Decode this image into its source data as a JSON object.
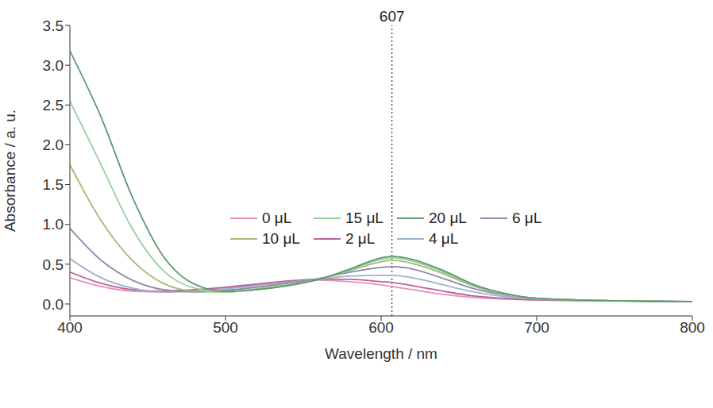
{
  "chart_data": {
    "type": "line",
    "x_label": "Wavelength / nm",
    "y_label": "Absorbance / a. u.",
    "x": [
      400,
      420,
      440,
      460,
      480,
      500,
      520,
      540,
      560,
      580,
      600,
      607,
      620,
      640,
      660,
      680,
      700,
      750,
      800
    ],
    "xlim": [
      400,
      800
    ],
    "xticks": [
      400,
      500,
      600,
      700,
      800
    ],
    "ylim": [
      -0.15,
      3.5
    ],
    "yticks": [
      {
        "value": 0,
        "label": "0.0"
      },
      0.5,
      {
        "value": 1,
        "label": "1.0"
      },
      1.5,
      {
        "value": 2,
        "label": "2.0"
      },
      2.5,
      {
        "value": 3,
        "label": "3.0"
      },
      3.5
    ],
    "grid": false,
    "legend": "center",
    "annotations": [
      {
        "x": 607,
        "text": "607",
        "line_style": "dotted"
      }
    ],
    "series": [
      {
        "name": "0 μL",
        "color": "#e88fb4",
        "values": [
          0.33,
          0.22,
          0.16,
          0.15,
          0.17,
          0.2,
          0.24,
          0.28,
          0.3,
          0.28,
          0.24,
          0.22,
          0.18,
          0.12,
          0.08,
          0.06,
          0.05,
          0.04,
          0.03
        ]
      },
      {
        "name": "2 μL",
        "color": "#b8649c",
        "values": [
          0.4,
          0.26,
          0.18,
          0.16,
          0.18,
          0.21,
          0.25,
          0.29,
          0.31,
          0.31,
          0.28,
          0.27,
          0.23,
          0.16,
          0.1,
          0.07,
          0.05,
          0.04,
          0.03
        ]
      },
      {
        "name": "4 μL",
        "color": "#9db2cf",
        "values": [
          0.57,
          0.33,
          0.2,
          0.15,
          0.16,
          0.19,
          0.23,
          0.27,
          0.31,
          0.35,
          0.36,
          0.36,
          0.33,
          0.24,
          0.15,
          0.09,
          0.06,
          0.04,
          0.03
        ]
      },
      {
        "name": "6 μL",
        "color": "#8c8aa8",
        "values": [
          0.95,
          0.55,
          0.3,
          0.18,
          0.15,
          0.17,
          0.21,
          0.26,
          0.32,
          0.4,
          0.46,
          0.47,
          0.44,
          0.32,
          0.19,
          0.11,
          0.07,
          0.04,
          0.03
        ]
      },
      {
        "name": "10 μL",
        "color": "#a9b878",
        "values": [
          1.75,
          1.05,
          0.55,
          0.26,
          0.16,
          0.15,
          0.19,
          0.24,
          0.31,
          0.42,
          0.53,
          0.55,
          0.51,
          0.38,
          0.22,
          0.12,
          0.07,
          0.04,
          0.03
        ]
      },
      {
        "name": "15 μL",
        "color": "#94d09c",
        "values": [
          2.55,
          1.75,
          0.95,
          0.42,
          0.2,
          0.15,
          0.18,
          0.23,
          0.31,
          0.43,
          0.56,
          0.58,
          0.54,
          0.4,
          0.23,
          0.12,
          0.07,
          0.04,
          0.03
        ]
      },
      {
        "name": "20 μL",
        "color": "#5a9a70",
        "values": [
          3.18,
          2.35,
          1.35,
          0.6,
          0.25,
          0.16,
          0.18,
          0.23,
          0.31,
          0.44,
          0.58,
          0.6,
          0.56,
          0.42,
          0.24,
          0.13,
          0.07,
          0.04,
          0.03
        ]
      }
    ]
  }
}
